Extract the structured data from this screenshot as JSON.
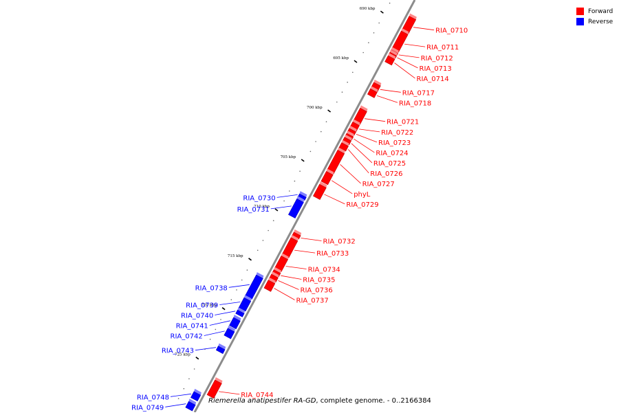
{
  "legend": [
    {
      "label": "Forward",
      "color": "#ff0000"
    },
    {
      "label": "Reverse",
      "color": "#0000ff"
    }
  ],
  "caption": {
    "organism": "Riemerella anatipestifer RA-GD",
    "suffix": ", complete genome. - 0..2166384"
  },
  "colors": {
    "forward": "#ff0000",
    "reverse": "#0000ff",
    "backbone": "#8c8c8c"
  },
  "ruler": {
    "unit": "kbp",
    "start_kbp": 687.7,
    "end_kbp": 729.4,
    "ticks": [
      690,
      695,
      700,
      705,
      710,
      715,
      720,
      725
    ]
  },
  "genes": [
    {
      "name": "RIA_0710",
      "strand": "forward",
      "start_kbp": 689.2,
      "end_kbp": 690.6
    },
    {
      "name": "RIA_0711",
      "strand": "forward",
      "start_kbp": 690.7,
      "end_kbp": 692.5
    },
    {
      "name": "RIA_0712",
      "strand": "forward",
      "start_kbp": 692.6,
      "end_kbp": 692.8
    },
    {
      "name": "RIA_0713",
      "strand": "forward",
      "start_kbp": 692.85,
      "end_kbp": 693.1
    },
    {
      "name": "RIA_0714",
      "strand": "forward",
      "start_kbp": 693.2,
      "end_kbp": 693.8
    },
    {
      "name": "RIA_0717",
      "strand": "forward",
      "start_kbp": 695.9,
      "end_kbp": 696.5
    },
    {
      "name": "RIA_0718",
      "strand": "forward",
      "start_kbp": 696.55,
      "end_kbp": 697.1
    },
    {
      "name": "RIA_0721",
      "strand": "forward",
      "start_kbp": 698.5,
      "end_kbp": 699.8
    },
    {
      "name": "RIA_0722",
      "strand": "forward",
      "start_kbp": 699.9,
      "end_kbp": 700.5
    },
    {
      "name": "RIA_0723",
      "strand": "forward",
      "start_kbp": 700.55,
      "end_kbp": 700.9
    },
    {
      "name": "RIA_0724",
      "strand": "forward",
      "start_kbp": 701.05,
      "end_kbp": 701.35
    },
    {
      "name": "RIA_0725",
      "strand": "forward",
      "start_kbp": 701.45,
      "end_kbp": 701.85
    },
    {
      "name": "RIA_0726",
      "strand": "forward",
      "start_kbp": 702.0,
      "end_kbp": 702.5
    },
    {
      "name": "RIA_0727",
      "strand": "forward",
      "start_kbp": 702.75,
      "end_kbp": 704.8
    },
    {
      "name": "phyL",
      "strand": "forward",
      "start_kbp": 704.9,
      "end_kbp": 705.9
    },
    {
      "name": "RIA_0729",
      "strand": "forward",
      "start_kbp": 706.2,
      "end_kbp": 707.4
    },
    {
      "name": "RIA_0730",
      "strand": "reverse",
      "start_kbp": 707.8,
      "end_kbp": 708.1
    },
    {
      "name": "RIA_0731",
      "strand": "reverse",
      "start_kbp": 708.3,
      "end_kbp": 709.9
    },
    {
      "name": "RIA_0732",
      "strand": "forward",
      "start_kbp": 711.05,
      "end_kbp": 711.4
    },
    {
      "name": "RIA_0733",
      "strand": "forward",
      "start_kbp": 711.6,
      "end_kbp": 713.3
    },
    {
      "name": "RIA_0734",
      "strand": "forward",
      "start_kbp": 713.45,
      "end_kbp": 714.7
    },
    {
      "name": "RIA_0735",
      "strand": "forward",
      "start_kbp": 714.85,
      "end_kbp": 715.2
    },
    {
      "name": "RIA_0736",
      "strand": "forward",
      "start_kbp": 715.3,
      "end_kbp": 715.75
    },
    {
      "name": "RIA_0737",
      "strand": "forward",
      "start_kbp": 715.9,
      "end_kbp": 716.7
    },
    {
      "name": "RIA_0738",
      "strand": "reverse",
      "start_kbp": 716.0,
      "end_kbp": 718.1
    },
    {
      "name": "RIA_0739",
      "strand": "reverse",
      "start_kbp": 718.3,
      "end_kbp": 719.3
    },
    {
      "name": "RIA_0740",
      "strand": "reverse",
      "start_kbp": 719.55,
      "end_kbp": 719.9
    },
    {
      "name": "RIA_0741",
      "strand": "reverse",
      "start_kbp": 720.3,
      "end_kbp": 721.1
    },
    {
      "name": "RIA_0742",
      "strand": "reverse",
      "start_kbp": 721.4,
      "end_kbp": 722.1
    },
    {
      "name": "RIA_0743",
      "strand": "reverse",
      "start_kbp": 723.2,
      "end_kbp": 723.6
    },
    {
      "name": "RIA_0744",
      "strand": "forward",
      "start_kbp": 726.0,
      "end_kbp": 727.5
    },
    {
      "name": "RIA_0748",
      "strand": "reverse",
      "start_kbp": 727.8,
      "end_kbp": 728.4
    },
    {
      "name": "RIA_0749",
      "strand": "reverse",
      "start_kbp": 728.8,
      "end_kbp": 729.4
    }
  ]
}
